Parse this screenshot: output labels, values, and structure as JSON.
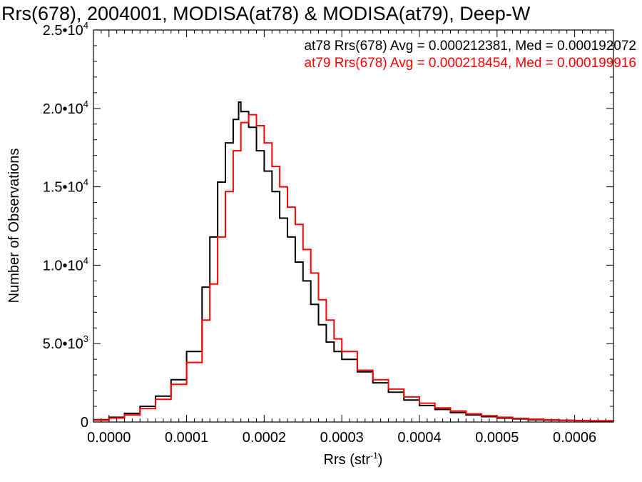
{
  "chart_data": {
    "type": "line",
    "title": "Rrs(678), 2004001, MODISA(at78) & MODISA(at79), Deep-W",
    "xlabel_main": "Rrs (str",
    "xlabel_sup": "-1",
    "xlabel_end": ")",
    "ylabel": "Number of Observations",
    "xlim": [
      -2e-05,
      0.00065
    ],
    "ylim": [
      0,
      25000
    ],
    "x_ticks": [
      {
        "value": 0.0,
        "label": "0.0000"
      },
      {
        "value": 0.0001,
        "label": "0.0001"
      },
      {
        "value": 0.0002,
        "label": "0.0002"
      },
      {
        "value": 0.0003,
        "label": "0.0003"
      },
      {
        "value": 0.0004,
        "label": "0.0004"
      },
      {
        "value": 0.0005,
        "label": "0.0005"
      },
      {
        "value": 0.0006,
        "label": "0.0006"
      }
    ],
    "y_ticks": [
      {
        "value": 0,
        "label": "0",
        "sup": ""
      },
      {
        "value": 5000,
        "label": "5.0•10",
        "sup": "3"
      },
      {
        "value": 10000,
        "label": "1.0•10",
        "sup": "4"
      },
      {
        "value": 15000,
        "label": "1.5•10",
        "sup": "4"
      },
      {
        "value": 20000,
        "label": "2.0•10",
        "sup": "4"
      },
      {
        "value": 25000,
        "label": "2.5•10",
        "sup": "4"
      }
    ],
    "legend": [
      {
        "text": "at78 Rrs(678) Avg = 0.000212381, Med = 0.000192072",
        "color": "#000000"
      },
      {
        "text": "at79 Rrs(678) Avg = 0.000218454, Med = 0.000199916",
        "color": "#ff0000"
      }
    ],
    "series": [
      {
        "color": "#000000",
        "points": [
          [
            -2e-05,
            150
          ],
          [
            0.0,
            300
          ],
          [
            2e-05,
            550
          ],
          [
            4e-05,
            1000
          ],
          [
            6e-05,
            1650
          ],
          [
            8e-05,
            2700
          ],
          [
            0.0001,
            4500
          ],
          [
            0.00012,
            8600
          ],
          [
            0.00013,
            11800
          ],
          [
            0.00014,
            15300
          ],
          [
            0.00015,
            17800
          ],
          [
            0.00016,
            19300
          ],
          [
            0.000167,
            20400
          ],
          [
            0.00017,
            19800
          ],
          [
            0.00018,
            18800
          ],
          [
            0.00019,
            17300
          ],
          [
            0.0002,
            16000
          ],
          [
            0.00021,
            14700
          ],
          [
            0.00022,
            13000
          ],
          [
            0.00023,
            11800
          ],
          [
            0.00024,
            10200
          ],
          [
            0.00025,
            9000
          ],
          [
            0.00026,
            7500
          ],
          [
            0.00027,
            6200
          ],
          [
            0.00028,
            5100
          ],
          [
            0.00029,
            4500
          ],
          [
            0.0003,
            4000
          ],
          [
            0.00032,
            3200
          ],
          [
            0.00034,
            2500
          ],
          [
            0.00036,
            1900
          ],
          [
            0.00038,
            1400
          ],
          [
            0.0004,
            1050
          ],
          [
            0.00042,
            800
          ],
          [
            0.00044,
            600
          ],
          [
            0.00046,
            450
          ],
          [
            0.00048,
            340
          ],
          [
            0.0005,
            250
          ],
          [
            0.00052,
            200
          ],
          [
            0.00054,
            150
          ],
          [
            0.00056,
            120
          ],
          [
            0.00058,
            100
          ],
          [
            0.0006,
            85
          ],
          [
            0.00062,
            70
          ],
          [
            0.00065,
            55
          ]
        ]
      },
      {
        "color": "#ff0000",
        "points": [
          [
            -2e-05,
            120
          ],
          [
            0.0,
            250
          ],
          [
            2e-05,
            450
          ],
          [
            4e-05,
            850
          ],
          [
            6e-05,
            1450
          ],
          [
            8e-05,
            2400
          ],
          [
            0.0001,
            3800
          ],
          [
            0.00012,
            6500
          ],
          [
            0.00013,
            8800
          ],
          [
            0.00014,
            11800
          ],
          [
            0.00015,
            14700
          ],
          [
            0.00016,
            17300
          ],
          [
            0.00017,
            19100
          ],
          [
            0.00018,
            19600
          ],
          [
            0.00019,
            18900
          ],
          [
            0.0002,
            17800
          ],
          [
            0.00021,
            16300
          ],
          [
            0.00022,
            15000
          ],
          [
            0.00023,
            13700
          ],
          [
            0.00024,
            12600
          ],
          [
            0.00025,
            11000
          ],
          [
            0.00026,
            9500
          ],
          [
            0.00027,
            7800
          ],
          [
            0.00028,
            6500
          ],
          [
            0.00029,
            5300
          ],
          [
            0.0003,
            4500
          ],
          [
            0.00032,
            3300
          ],
          [
            0.00034,
            2700
          ],
          [
            0.00036,
            2100
          ],
          [
            0.00038,
            1600
          ],
          [
            0.0004,
            1200
          ],
          [
            0.00042,
            900
          ],
          [
            0.00044,
            700
          ],
          [
            0.00046,
            520
          ],
          [
            0.00048,
            400
          ],
          [
            0.0005,
            300
          ],
          [
            0.00052,
            230
          ],
          [
            0.00054,
            180
          ],
          [
            0.00056,
            140
          ],
          [
            0.00058,
            115
          ],
          [
            0.0006,
            95
          ],
          [
            0.00062,
            80
          ],
          [
            0.00065,
            60
          ]
        ]
      }
    ]
  }
}
